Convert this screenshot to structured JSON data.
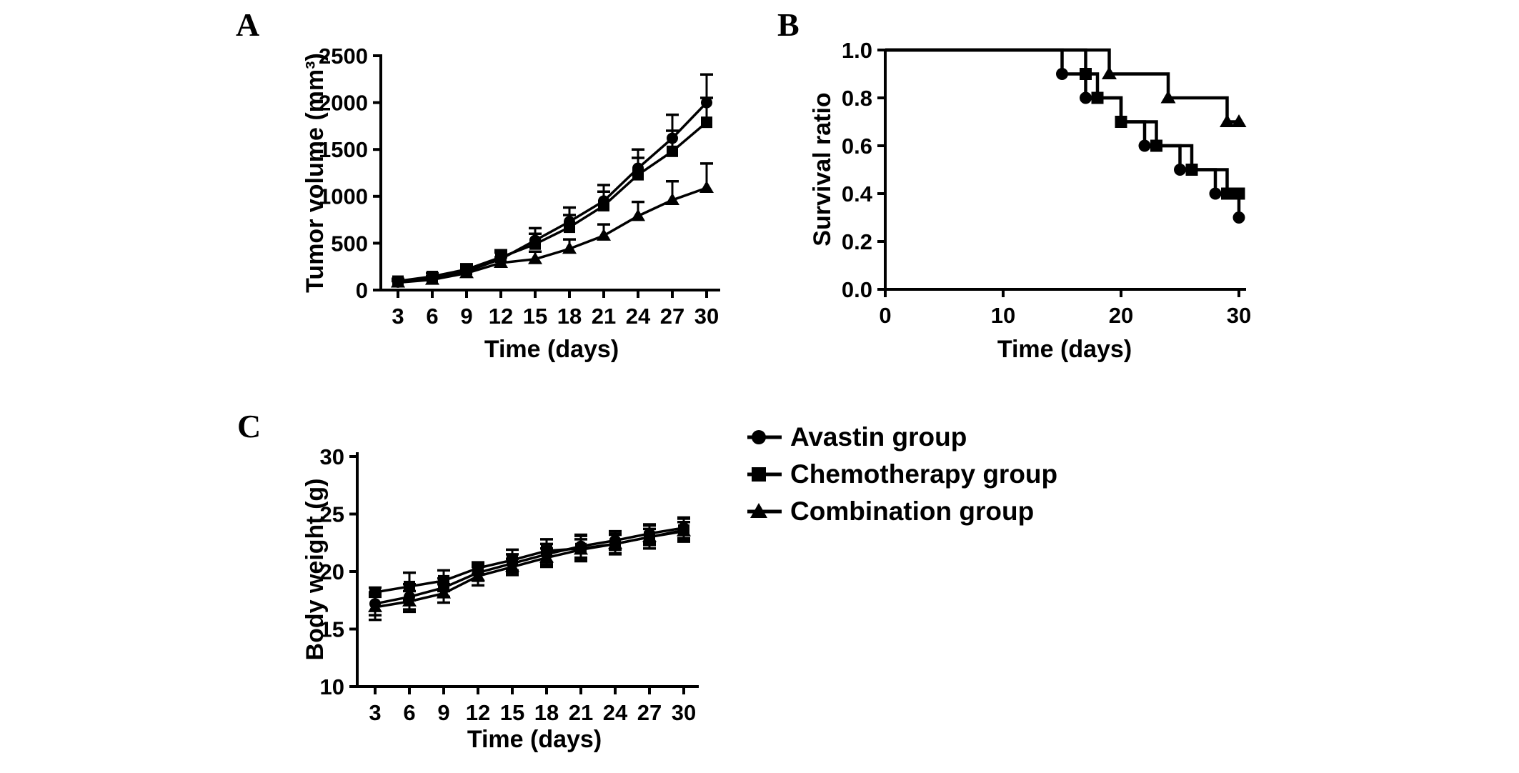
{
  "panels": {
    "a": {
      "letter": "A"
    },
    "b": {
      "letter": "B"
    },
    "c": {
      "letter": "C"
    }
  },
  "legend": {
    "items": [
      {
        "label": "Avastin group",
        "marker": "circle"
      },
      {
        "label": "Chemotherapy group",
        "marker": "square"
      },
      {
        "label": "Combination group",
        "marker": "triangle"
      }
    ]
  },
  "colors": {
    "ink": "#000000",
    "background": "#ffffff"
  },
  "chart_data": [
    {
      "id": "tumor-volume",
      "panel": "A",
      "type": "line",
      "title": "",
      "xlabel": "Time (days)",
      "ylabel": "Tumor volume (mm³)",
      "categories": [
        3,
        6,
        9,
        12,
        15,
        18,
        21,
        24,
        27,
        30
      ],
      "x_tick_labels": [
        "3",
        "6",
        "9",
        "12",
        "15",
        "18",
        "21",
        "24",
        "27",
        "30"
      ],
      "y_ticks": [
        0,
        500,
        1000,
        1500,
        2000,
        2500
      ],
      "y_tick_labels": [
        "0",
        "500",
        "1000",
        "1500",
        "2000",
        "2500"
      ],
      "ylim": [
        0,
        2500
      ],
      "error_bars": "upper",
      "series": [
        {
          "name": "Avastin group",
          "marker": "circle",
          "values": [
            85,
            120,
            200,
            330,
            530,
            730,
            950,
            1300,
            1620,
            2000
          ],
          "err": [
            20,
            30,
            50,
            70,
            130,
            150,
            170,
            200,
            250,
            300
          ]
        },
        {
          "name": "Chemotherapy group",
          "marker": "square",
          "values": [
            95,
            145,
            220,
            350,
            490,
            670,
            900,
            1230,
            1480,
            1790
          ],
          "err": [
            25,
            35,
            55,
            75,
            110,
            130,
            150,
            180,
            220,
            260
          ]
        },
        {
          "name": "Combination group",
          "marker": "triangle",
          "values": [
            80,
            110,
            180,
            290,
            330,
            440,
            580,
            790,
            960,
            1090
          ],
          "err": [
            15,
            25,
            45,
            60,
            80,
            100,
            120,
            150,
            200,
            260
          ]
        }
      ]
    },
    {
      "id": "survival-ratio",
      "panel": "B",
      "type": "step",
      "title": "",
      "xlabel": "Time (days)",
      "ylabel": "Survival ratio",
      "x_ticks": [
        0,
        10,
        20,
        30
      ],
      "x_tick_labels": [
        "0",
        "10",
        "20",
        "30"
      ],
      "y_ticks": [
        0,
        0.2,
        0.4,
        0.6,
        0.8,
        1.0
      ],
      "y_tick_labels": [
        "0.0",
        "0.2",
        "0.4",
        "0.6",
        "0.8",
        "1.0"
      ],
      "xlim": [
        0,
        30
      ],
      "ylim": [
        0,
        1
      ],
      "series": [
        {
          "name": "Avastin group",
          "marker": "circle",
          "start": 1.0,
          "drops": [
            [
              15,
              0.9
            ],
            [
              17,
              0.8
            ],
            [
              20,
              0.7
            ],
            [
              22,
              0.6
            ],
            [
              25,
              0.5
            ],
            [
              28,
              0.4
            ],
            [
              30,
              0.3
            ]
          ],
          "markers": [
            [
              15,
              0.9
            ],
            [
              17,
              0.8
            ],
            [
              22,
              0.6
            ],
            [
              25,
              0.5
            ],
            [
              28,
              0.4
            ],
            [
              30,
              0.3
            ]
          ],
          "end_day": 30
        },
        {
          "name": "Chemotherapy group",
          "marker": "square",
          "start": 1.0,
          "drops": [
            [
              17,
              0.9
            ],
            [
              18,
              0.8
            ],
            [
              20,
              0.7
            ],
            [
              23,
              0.6
            ],
            [
              26,
              0.5
            ],
            [
              29,
              0.4
            ]
          ],
          "markers": [
            [
              17,
              0.9
            ],
            [
              18,
              0.8
            ],
            [
              20,
              0.7
            ],
            [
              23,
              0.6
            ],
            [
              26,
              0.5
            ],
            [
              29,
              0.4
            ],
            [
              30,
              0.4
            ]
          ],
          "end_day": 30
        },
        {
          "name": "Combination group",
          "marker": "triangle",
          "start": 1.0,
          "drops": [
            [
              19,
              0.9
            ],
            [
              24,
              0.8
            ],
            [
              29,
              0.7
            ]
          ],
          "markers": [
            [
              19,
              0.9
            ],
            [
              24,
              0.8
            ],
            [
              29,
              0.7
            ],
            [
              30,
              0.7
            ]
          ],
          "end_day": 30
        }
      ]
    },
    {
      "id": "body-weight",
      "panel": "C",
      "type": "line",
      "title": "",
      "xlabel": "Time (days)",
      "ylabel": "Body weight (g)",
      "categories": [
        3,
        6,
        9,
        12,
        15,
        18,
        21,
        24,
        27,
        30
      ],
      "x_tick_labels": [
        "3",
        "6",
        "9",
        "12",
        "15",
        "18",
        "21",
        "24",
        "27",
        "30"
      ],
      "y_ticks": [
        10,
        15,
        20,
        25,
        30
      ],
      "y_tick_labels": [
        "10",
        "15",
        "20",
        "25",
        "30"
      ],
      "ylim": [
        10,
        30
      ],
      "error_bars": "symmetric",
      "series": [
        {
          "name": "Avastin group",
          "marker": "circle",
          "values": [
            17.2,
            17.8,
            18.6,
            19.9,
            20.7,
            21.5,
            22.2,
            22.7,
            23.3,
            23.8
          ],
          "err": [
            1.0,
            1.1,
            0.8,
            0.7,
            0.8,
            0.9,
            1.0,
            0.8,
            0.8,
            0.9
          ]
        },
        {
          "name": "Chemotherapy group",
          "marker": "square",
          "values": [
            18.2,
            18.7,
            19.2,
            20.3,
            21.0,
            21.8,
            22.0,
            22.4,
            23.0,
            23.6
          ],
          "err": [
            0.4,
            1.2,
            0.9,
            0.5,
            0.9,
            1.0,
            1.1,
            0.9,
            1.0,
            1.0
          ]
        },
        {
          "name": "Combination group",
          "marker": "triangle",
          "values": [
            16.9,
            17.4,
            18.1,
            19.6,
            20.4,
            21.2,
            21.9,
            22.4,
            23.0,
            23.5
          ],
          "err": [
            1.1,
            0.9,
            0.8,
            0.8,
            0.7,
            0.8,
            0.9,
            0.8,
            0.7,
            0.8
          ]
        }
      ]
    }
  ]
}
